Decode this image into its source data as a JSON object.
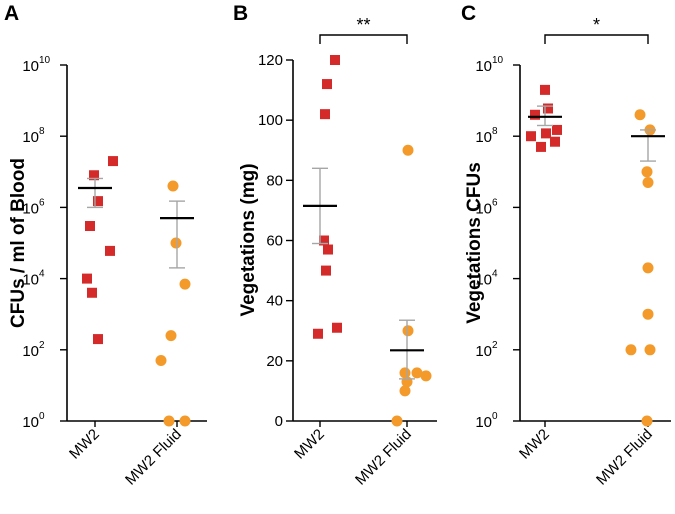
{
  "chart_data": [
    {
      "panel": "A",
      "type": "scatter",
      "scale": "log10",
      "ylabel": "CFUs / ml of Blood",
      "ylim": [
        1,
        10000000000
      ],
      "yticks": [
        {
          "base": "10",
          "exp": "0",
          "value": 1
        },
        {
          "base": "10",
          "exp": "2",
          "value": 100
        },
        {
          "base": "10",
          "exp": "4",
          "value": 10000
        },
        {
          "base": "10",
          "exp": "6",
          "value": 1000000
        },
        {
          "base": "10",
          "exp": "8",
          "value": 100000000
        },
        {
          "base": "10",
          "exp": "10",
          "value": 10000000000
        }
      ],
      "categories": [
        "MW2",
        "MW2 Fluid"
      ],
      "series": [
        {
          "name": "MW2",
          "color": "#d42a2a",
          "marker": "square",
          "values": [
            20000000,
            8000000,
            1500000,
            300000,
            60000,
            10000,
            4000,
            200
          ],
          "mean": 3500000,
          "sem_low": 1000000,
          "sem_high": 6500000
        },
        {
          "name": "MW2 Fluid",
          "color": "#f39a2b",
          "marker": "circle",
          "values": [
            4000000,
            100000,
            7000,
            250,
            50,
            1,
            1
          ],
          "mean": 500000,
          "sem_low": 20000,
          "sem_high": 1500000
        }
      ],
      "significance": ""
    },
    {
      "panel": "B",
      "type": "scatter",
      "scale": "linear",
      "ylabel": "Vegetations (mg)",
      "ylim": [
        0,
        120
      ],
      "yticks": [
        {
          "base": "0",
          "exp": "",
          "value": 0
        },
        {
          "base": "20",
          "exp": "",
          "value": 20
        },
        {
          "base": "40",
          "exp": "",
          "value": 40
        },
        {
          "base": "60",
          "exp": "",
          "value": 60
        },
        {
          "base": "80",
          "exp": "",
          "value": 80
        },
        {
          "base": "100",
          "exp": "",
          "value": 100
        },
        {
          "base": "120",
          "exp": "",
          "value": 120
        }
      ],
      "categories": [
        "MW2",
        "MW2 Fluid"
      ],
      "series": [
        {
          "name": "MW2",
          "color": "#d42a2a",
          "marker": "square",
          "values": [
            120,
            112,
            102,
            60,
            57,
            50,
            31,
            29
          ],
          "mean": 71.5,
          "sem_low": 59,
          "sem_high": 84
        },
        {
          "name": "MW2 Fluid",
          "color": "#f39a2b",
          "marker": "circle",
          "values": [
            90,
            30,
            16,
            16,
            15,
            13,
            10,
            0
          ],
          "mean": 23.5,
          "sem_low": 14,
          "sem_high": 33.5
        }
      ],
      "significance": "**"
    },
    {
      "panel": "C",
      "type": "scatter",
      "scale": "log10",
      "ylabel": "Vegetations CFUs",
      "ylim": [
        1,
        10000000000
      ],
      "yticks": [
        {
          "base": "10",
          "exp": "0",
          "value": 1
        },
        {
          "base": "10",
          "exp": "2",
          "value": 100
        },
        {
          "base": "10",
          "exp": "4",
          "value": 10000
        },
        {
          "base": "10",
          "exp": "6",
          "value": 1000000
        },
        {
          "base": "10",
          "exp": "8",
          "value": 100000000
        },
        {
          "base": "10",
          "exp": "10",
          "value": 10000000000
        }
      ],
      "categories": [
        "MW2",
        "MW2 Fluid"
      ],
      "series": [
        {
          "name": "MW2",
          "color": "#d42a2a",
          "marker": "square",
          "values": [
            2000000000,
            600000000,
            400000000,
            150000000,
            120000000,
            100000000,
            70000000,
            50000000
          ],
          "mean": 350000000,
          "sem_low": 200000000,
          "sem_high": 700000000
        },
        {
          "name": "MW2 Fluid",
          "color": "#f39a2b",
          "marker": "circle",
          "values": [
            400000000,
            150000000,
            10000000,
            5000000,
            20000,
            1000,
            100,
            100,
            1
          ],
          "mean": 100000000,
          "sem_low": 20000000,
          "sem_high": 150000000
        }
      ],
      "significance": "*"
    }
  ]
}
